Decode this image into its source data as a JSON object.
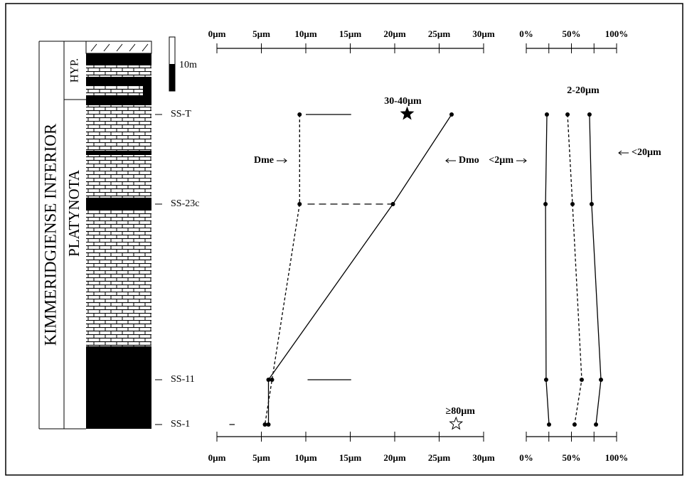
{
  "column": {
    "stage": "KIMMERIDGIENSE INFERIOR",
    "zone": "PLATYNOTA",
    "subzone": "HYP.",
    "scale_label": "10m"
  },
  "samples": [
    "SS-T",
    "SS-23c",
    "SS-11",
    "SS-1"
  ],
  "chart_data": [
    {
      "type": "line",
      "xlim": [
        0,
        30
      ],
      "xticks": [
        {
          "value": 0,
          "label": "0µm"
        },
        {
          "value": 5,
          "label": "5µm"
        },
        {
          "value": 10,
          "label": "10µm"
        },
        {
          "value": 15,
          "label": "15µm"
        },
        {
          "value": 20,
          "label": "20µm"
        },
        {
          "value": 25,
          "label": "25µm"
        },
        {
          "value": 30,
          "label": "30µm"
        }
      ],
      "series": [
        {
          "name": "Dme",
          "color": "#000000",
          "dashed": true,
          "values": [
            9.3,
            9.3,
            6.2,
            5.4
          ]
        },
        {
          "name": "Dmo",
          "color": "#000000",
          "dashed": false,
          "values": [
            26.4,
            19.8,
            5.8,
            5.8
          ]
        }
      ],
      "ranges": [
        [
          10.0,
          15.1
        ],
        [
          10.2,
          19.8
        ],
        [
          10.2,
          15.1
        ],
        [
          1.4,
          2.0
        ]
      ],
      "ranges_dashed": [
        false,
        true,
        false,
        true
      ],
      "annotations": [
        {
          "text": "30-40µm",
          "x": 21.4,
          "at": 0,
          "marker": "filled-star"
        },
        {
          "text": "≥80µm",
          "x": 26.9,
          "at": 3,
          "marker": "open-star"
        }
      ]
    },
    {
      "type": "line",
      "xlim": [
        0,
        100
      ],
      "xticks": [
        {
          "value": 0,
          "label": "0%"
        },
        {
          "value": 50,
          "label": "50%"
        },
        {
          "value": 100,
          "label": "100%"
        }
      ],
      "xminor": [
        25,
        75
      ],
      "series": [
        {
          "name": "<2µm",
          "color": "#000000",
          "dashed": false,
          "values": [
            22.8,
            21.3,
            22.0,
            25.2
          ]
        },
        {
          "name": "2-20µm",
          "color": "#000000",
          "dashed": true,
          "values": [
            45.7,
            51.2,
            61.4,
            53.5
          ]
        },
        {
          "name": "<20µm",
          "color": "#000000",
          "dashed": false,
          "values": [
            70.0,
            72.4,
            82.7,
            77.2
          ]
        }
      ]
    }
  ]
}
